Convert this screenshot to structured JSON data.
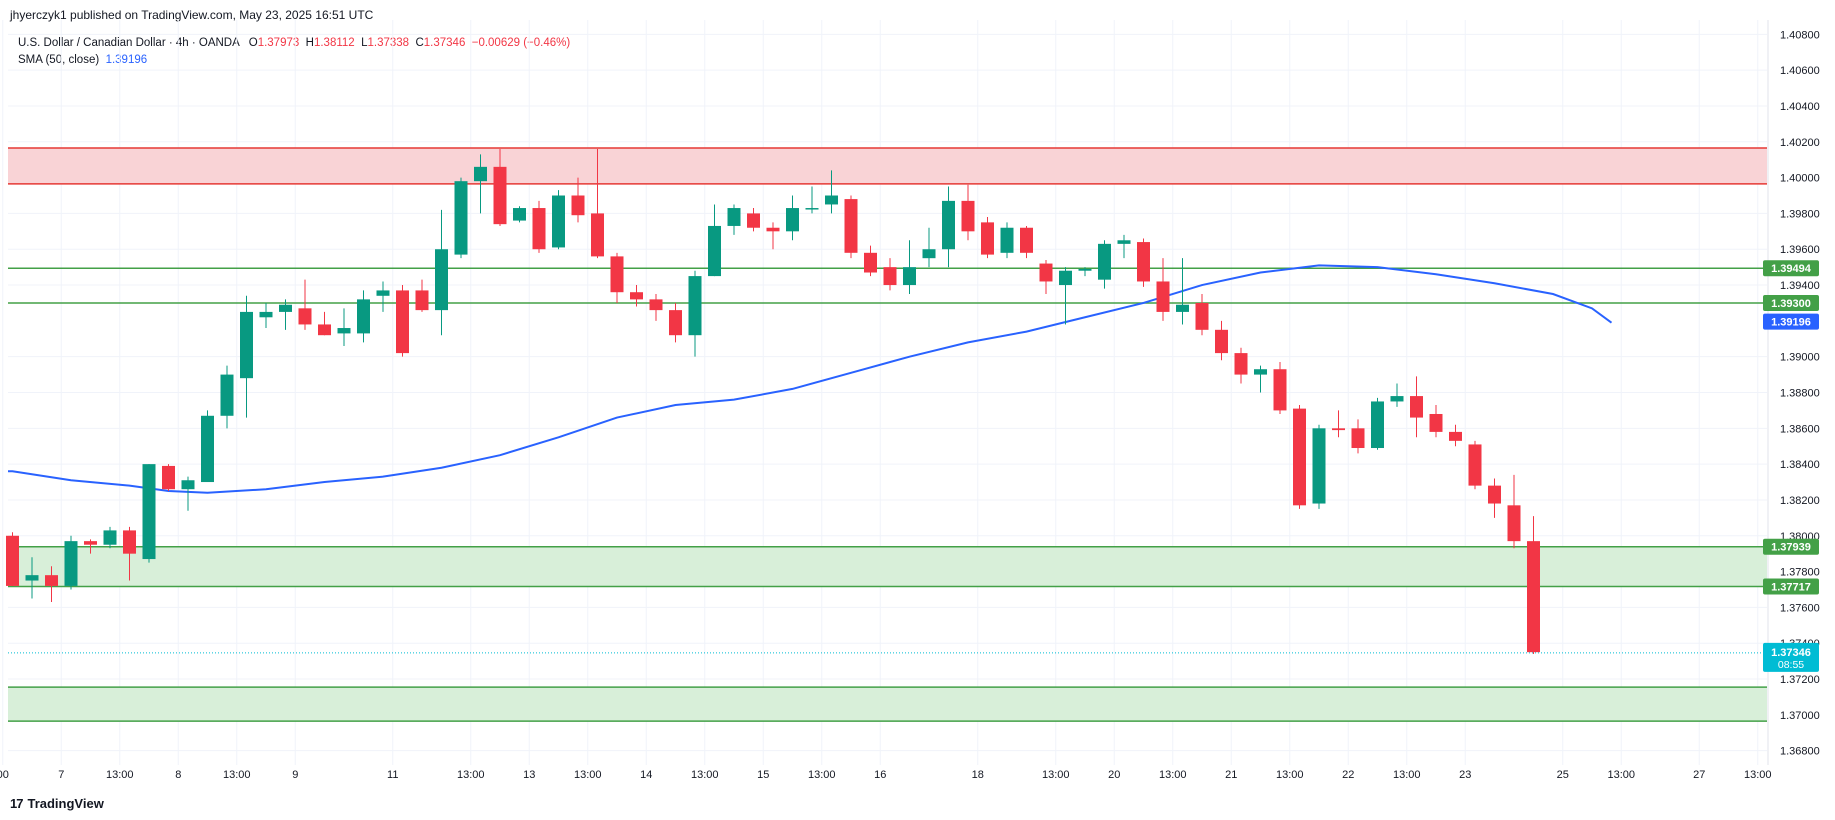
{
  "header": {
    "caption": "jhyerczyk1 published on TradingView.com, May 23, 2025 16:51 UTC"
  },
  "legend": {
    "title": "U.S. Dollar / Canadian Dollar · 4h · OANDA",
    "o_label": "O",
    "o_value": "1.37973",
    "h_label": "H",
    "h_value": "1.38112",
    "l_label": "L",
    "l_value": "1.37338",
    "c_label": "C",
    "c_value": "1.37346",
    "change": "−0.00629 (−0.46%)",
    "sma_label": "SMA (50, close)",
    "sma_value": "1.39196"
  },
  "footer": {
    "brand": "TradingView",
    "logo_mark": "17"
  },
  "colors": {
    "up": "#089981",
    "down": "#f23645",
    "sma": "#2962ff",
    "resistance_fill": "#f9d3d6",
    "resistance_line": "#e53935",
    "support_fill": "#d8efd9",
    "support_line": "#43a047",
    "label_green": "#43a047",
    "label_blue": "#2962ff",
    "label_price": "#00bcd4"
  },
  "chart_data": {
    "type": "candlestick",
    "symbol": "U.S. Dollar / Canadian Dollar",
    "timeframe": "4h",
    "ylim": [
      1.3672,
      1.4088
    ],
    "y_ticks": [
      "1.40800",
      "1.40600",
      "1.40400",
      "1.40200",
      "1.40000",
      "1.39800",
      "1.39600",
      "1.39400",
      "1.39000",
      "1.38800",
      "1.38600",
      "1.38400",
      "1.38200",
      "1.38000",
      "1.37800",
      "1.37600",
      "1.37400",
      "1.37200",
      "1.37000",
      "1.36800"
    ],
    "x_ticks": [
      "00",
      "7",
      "13:00",
      "8",
      "13:00",
      "9",
      "11",
      "13:00",
      "13",
      "13:00",
      "14",
      "13:00",
      "15",
      "13:00",
      "16",
      "18",
      "13:00",
      "20",
      "13:00",
      "21",
      "13:00",
      "22",
      "13:00",
      "23",
      "25",
      "13:00",
      "27",
      "13:00"
    ],
    "candles": [
      {
        "o": 1.38,
        "h": 1.3802,
        "l": 1.3772,
        "c": 1.3772
      },
      {
        "o": 1.3775,
        "h": 1.3788,
        "l": 1.3765,
        "c": 1.3778
      },
      {
        "o": 1.3778,
        "h": 1.3783,
        "l": 1.3763,
        "c": 1.3772
      },
      {
        "o": 1.3772,
        "h": 1.38,
        "l": 1.377,
        "c": 1.3797
      },
      {
        "o": 1.3797,
        "h": 1.3798,
        "l": 1.379,
        "c": 1.3795
      },
      {
        "o": 1.3795,
        "h": 1.3805,
        "l": 1.3793,
        "c": 1.3803
      },
      {
        "o": 1.3803,
        "h": 1.3805,
        "l": 1.3775,
        "c": 1.379
      },
      {
        "o": 1.3787,
        "h": 1.384,
        "l": 1.3785,
        "c": 1.384
      },
      {
        "o": 1.3839,
        "h": 1.384,
        "l": 1.3825,
        "c": 1.3826
      },
      {
        "o": 1.3826,
        "h": 1.3833,
        "l": 1.3814,
        "c": 1.3831
      },
      {
        "o": 1.383,
        "h": 1.387,
        "l": 1.383,
        "c": 1.3867
      },
      {
        "o": 1.3867,
        "h": 1.3895,
        "l": 1.386,
        "c": 1.389
      },
      {
        "o": 1.3888,
        "h": 1.3934,
        "l": 1.3866,
        "c": 1.3925
      },
      {
        "o": 1.3922,
        "h": 1.393,
        "l": 1.3916,
        "c": 1.3925
      },
      {
        "o": 1.3925,
        "h": 1.3932,
        "l": 1.3915,
        "c": 1.3929
      },
      {
        "o": 1.3927,
        "h": 1.3943,
        "l": 1.3915,
        "c": 1.3918
      },
      {
        "o": 1.3918,
        "h": 1.3925,
        "l": 1.3912,
        "c": 1.3912
      },
      {
        "o": 1.3913,
        "h": 1.3927,
        "l": 1.3906,
        "c": 1.3916
      },
      {
        "o": 1.3913,
        "h": 1.3937,
        "l": 1.3908,
        "c": 1.3932
      },
      {
        "o": 1.3934,
        "h": 1.3942,
        "l": 1.3925,
        "c": 1.3937
      },
      {
        "o": 1.3937,
        "h": 1.394,
        "l": 1.39,
        "c": 1.3902
      },
      {
        "o": 1.3937,
        "h": 1.3943,
        "l": 1.3925,
        "c": 1.3926
      },
      {
        "o": 1.3926,
        "h": 1.3982,
        "l": 1.3912,
        "c": 1.396
      },
      {
        "o": 1.3957,
        "h": 1.4,
        "l": 1.3955,
        "c": 1.3998
      },
      {
        "o": 1.3998,
        "h": 1.4013,
        "l": 1.398,
        "c": 1.4006
      },
      {
        "o": 1.4006,
        "h": 1.4016,
        "l": 1.3973,
        "c": 1.3974
      },
      {
        "o": 1.3976,
        "h": 1.3984,
        "l": 1.3975,
        "c": 1.3983
      },
      {
        "o": 1.3983,
        "h": 1.3987,
        "l": 1.3958,
        "c": 1.396
      },
      {
        "o": 1.3961,
        "h": 1.3993,
        "l": 1.396,
        "c": 1.399
      },
      {
        "o": 1.399,
        "h": 1.4,
        "l": 1.3975,
        "c": 1.3979
      },
      {
        "o": 1.398,
        "h": 1.4016,
        "l": 1.3955,
        "c": 1.3956
      },
      {
        "o": 1.3956,
        "h": 1.3958,
        "l": 1.393,
        "c": 1.3936
      },
      {
        "o": 1.3936,
        "h": 1.394,
        "l": 1.3928,
        "c": 1.3932
      },
      {
        "o": 1.3932,
        "h": 1.3935,
        "l": 1.392,
        "c": 1.3926
      },
      {
        "o": 1.3926,
        "h": 1.393,
        "l": 1.3908,
        "c": 1.3912
      },
      {
        "o": 1.3912,
        "h": 1.3948,
        "l": 1.39,
        "c": 1.3945
      },
      {
        "o": 1.3945,
        "h": 1.3985,
        "l": 1.3945,
        "c": 1.3973
      },
      {
        "o": 1.3973,
        "h": 1.3985,
        "l": 1.3968,
        "c": 1.3983
      },
      {
        "o": 1.398,
        "h": 1.3983,
        "l": 1.397,
        "c": 1.3972
      },
      {
        "o": 1.3972,
        "h": 1.3975,
        "l": 1.396,
        "c": 1.397
      },
      {
        "o": 1.397,
        "h": 1.399,
        "l": 1.3965,
        "c": 1.3983
      },
      {
        "o": 1.3983,
        "h": 1.3995,
        "l": 1.398,
        "c": 1.3983
      },
      {
        "o": 1.3985,
        "h": 1.4004,
        "l": 1.398,
        "c": 1.399
      },
      {
        "o": 1.3988,
        "h": 1.399,
        "l": 1.3955,
        "c": 1.3958
      },
      {
        "o": 1.3958,
        "h": 1.3962,
        "l": 1.3945,
        "c": 1.3947
      },
      {
        "o": 1.395,
        "h": 1.3955,
        "l": 1.3937,
        "c": 1.394
      },
      {
        "o": 1.394,
        "h": 1.3965,
        "l": 1.3935,
        "c": 1.395
      },
      {
        "o": 1.3955,
        "h": 1.3972,
        "l": 1.395,
        "c": 1.396
      },
      {
        "o": 1.396,
        "h": 1.3995,
        "l": 1.395,
        "c": 1.3987
      },
      {
        "o": 1.3987,
        "h": 1.3996,
        "l": 1.3965,
        "c": 1.397
      },
      {
        "o": 1.3975,
        "h": 1.3978,
        "l": 1.3955,
        "c": 1.3957
      },
      {
        "o": 1.3958,
        "h": 1.3975,
        "l": 1.3955,
        "c": 1.3972
      },
      {
        "o": 1.3972,
        "h": 1.3973,
        "l": 1.3955,
        "c": 1.3958
      },
      {
        "o": 1.3952,
        "h": 1.3954,
        "l": 1.3935,
        "c": 1.3942
      },
      {
        "o": 1.394,
        "h": 1.395,
        "l": 1.3918,
        "c": 1.3948
      },
      {
        "o": 1.3948,
        "h": 1.395,
        "l": 1.3945,
        "c": 1.3949
      },
      {
        "o": 1.3943,
        "h": 1.3965,
        "l": 1.3938,
        "c": 1.3963
      },
      {
        "o": 1.3963,
        "h": 1.3968,
        "l": 1.3955,
        "c": 1.3965
      },
      {
        "o": 1.3964,
        "h": 1.3966,
        "l": 1.3939,
        "c": 1.3942
      },
      {
        "o": 1.3942,
        "h": 1.3955,
        "l": 1.392,
        "c": 1.3925
      },
      {
        "o": 1.3925,
        "h": 1.3955,
        "l": 1.3918,
        "c": 1.3929
      },
      {
        "o": 1.393,
        "h": 1.3935,
        "l": 1.3912,
        "c": 1.3915
      },
      {
        "o": 1.3915,
        "h": 1.392,
        "l": 1.3898,
        "c": 1.3902
      },
      {
        "o": 1.3902,
        "h": 1.3905,
        "l": 1.3885,
        "c": 1.389
      },
      {
        "o": 1.389,
        "h": 1.3895,
        "l": 1.388,
        "c": 1.3893
      },
      {
        "o": 1.3893,
        "h": 1.3897,
        "l": 1.3868,
        "c": 1.387
      },
      {
        "o": 1.3871,
        "h": 1.3873,
        "l": 1.3815,
        "c": 1.3817
      },
      {
        "o": 1.3818,
        "h": 1.3862,
        "l": 1.3815,
        "c": 1.386
      },
      {
        "o": 1.386,
        "h": 1.387,
        "l": 1.3855,
        "c": 1.3859
      },
      {
        "o": 1.386,
        "h": 1.3865,
        "l": 1.3846,
        "c": 1.3849
      },
      {
        "o": 1.3849,
        "h": 1.3877,
        "l": 1.3848,
        "c": 1.3875
      },
      {
        "o": 1.3875,
        "h": 1.3885,
        "l": 1.3872,
        "c": 1.3878
      },
      {
        "o": 1.3878,
        "h": 1.3889,
        "l": 1.3855,
        "c": 1.3866
      },
      {
        "o": 1.3868,
        "h": 1.3873,
        "l": 1.3855,
        "c": 1.3858
      },
      {
        "o": 1.3858,
        "h": 1.3862,
        "l": 1.385,
        "c": 1.3853
      },
      {
        "o": 1.3851,
        "h": 1.3853,
        "l": 1.3826,
        "c": 1.3828
      },
      {
        "o": 1.3828,
        "h": 1.3832,
        "l": 1.381,
        "c": 1.3818
      },
      {
        "o": 1.3817,
        "h": 1.3834,
        "l": 1.3793,
        "c": 1.3797
      },
      {
        "o": 1.3797,
        "h": 1.3811,
        "l": 1.3734,
        "c": 1.3735
      }
    ],
    "sma": {
      "name": "SMA (50, close)",
      "points": [
        [
          0,
          1.3836
        ],
        [
          3,
          1.3831
        ],
        [
          6,
          1.3828
        ],
        [
          8,
          1.3825
        ],
        [
          10,
          1.3824
        ],
        [
          13,
          1.3826
        ],
        [
          16,
          1.383
        ],
        [
          19,
          1.3833
        ],
        [
          22,
          1.3838
        ],
        [
          25,
          1.3845
        ],
        [
          28,
          1.3855
        ],
        [
          31,
          1.3866
        ],
        [
          34,
          1.3873
        ],
        [
          37,
          1.3876
        ],
        [
          40,
          1.3882
        ],
        [
          43,
          1.3891
        ],
        [
          46,
          1.39
        ],
        [
          49,
          1.3908
        ],
        [
          52,
          1.3914
        ],
        [
          55,
          1.3922
        ],
        [
          58,
          1.393
        ],
        [
          61,
          1.394
        ],
        [
          64,
          1.3947
        ],
        [
          67,
          1.3951
        ],
        [
          70,
          1.395
        ],
        [
          73,
          1.3946
        ],
        [
          76,
          1.3941
        ],
        [
          79,
          1.3935
        ],
        [
          81,
          1.3927
        ],
        [
          82,
          1.3919
        ]
      ]
    },
    "zones": [
      {
        "kind": "resistance",
        "top": 1.40165,
        "bottom": 1.39965
      },
      {
        "kind": "support",
        "top": 1.37939,
        "bottom": 1.37717
      },
      {
        "kind": "support",
        "top": 1.37155,
        "bottom": 1.36965
      }
    ],
    "levels": [
      1.39494,
      1.393
    ],
    "price_labels": [
      {
        "text": "1.39494",
        "value": 1.39494,
        "color": "green"
      },
      {
        "text": "1.39300",
        "value": 1.393,
        "color": "green"
      },
      {
        "text": "1.39196",
        "value": 1.39196,
        "color": "blue"
      },
      {
        "text": "1.37939",
        "value": 1.37939,
        "color": "green"
      },
      {
        "text": "1.37717",
        "value": 1.37717,
        "color": "green"
      }
    ],
    "current_price": {
      "text": "1.37346",
      "countdown": "08:55",
      "value": 1.37346
    }
  }
}
